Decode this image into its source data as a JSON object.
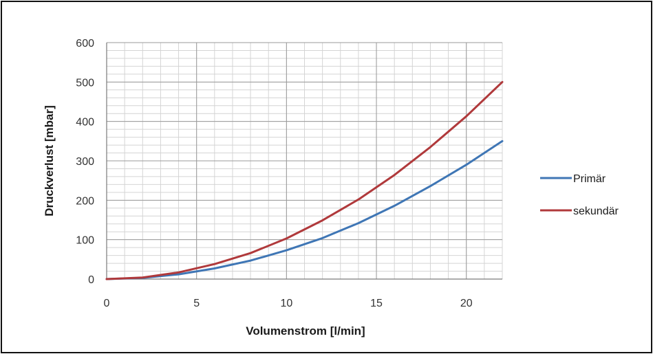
{
  "chart_data": {
    "type": "line",
    "title": "",
    "xlabel": "Volumenstrom [l/min]",
    "ylabel": "Druckverlust [mbar]",
    "xlim": [
      0,
      22
    ],
    "ylim": [
      0,
      600
    ],
    "x_ticks": [
      0,
      5,
      10,
      15,
      20
    ],
    "y_ticks": [
      0,
      100,
      200,
      300,
      400,
      500,
      600
    ],
    "x_tick_labels": [
      "0",
      "5",
      "10",
      "15",
      "20"
    ],
    "y_tick_labels": [
      "0",
      "100",
      "200",
      "300",
      "400",
      "500",
      "600"
    ],
    "grid": true,
    "legend_position": "right",
    "series": [
      {
        "name": "Primär",
        "color": "#3f76b5",
        "x": [
          0,
          2,
          4,
          6,
          8,
          10,
          12,
          14,
          16,
          18,
          20,
          22
        ],
        "y": [
          0,
          3,
          12,
          27,
          47,
          73,
          104,
          142,
          186,
          236,
          290,
          350
        ]
      },
      {
        "name": "sekundär",
        "color": "#b0393b",
        "x": [
          0,
          2,
          4,
          6,
          8,
          10,
          12,
          14,
          16,
          18,
          20,
          22
        ],
        "y": [
          0,
          4,
          17,
          38,
          66,
          103,
          149,
          202,
          264,
          335,
          413,
          500
        ]
      }
    ]
  }
}
